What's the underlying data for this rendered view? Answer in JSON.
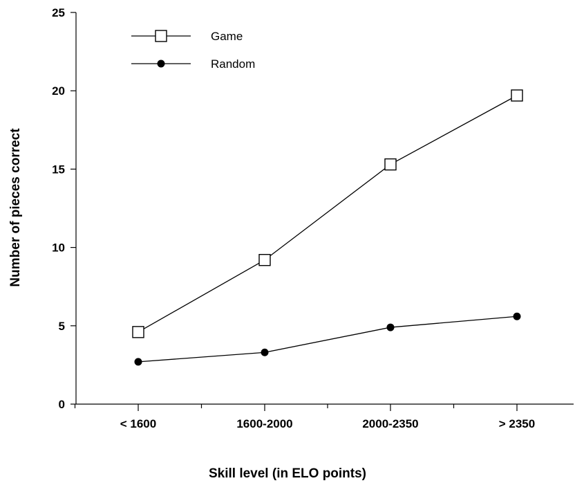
{
  "chart_data": {
    "type": "line",
    "categories": [
      "< 1600",
      "1600-2000",
      "2000-2350",
      "> 2350"
    ],
    "series": [
      {
        "name": "Game",
        "values": [
          4.6,
          9.2,
          15.3,
          19.7
        ],
        "marker": "open-square"
      },
      {
        "name": "Random",
        "values": [
          2.7,
          3.3,
          4.9,
          5.6
        ],
        "marker": "filled-circle"
      }
    ],
    "xlabel": "Skill level (in ELO points)",
    "ylabel": "Number of pieces correct",
    "ylim": [
      0,
      25
    ],
    "yticks": [
      "0",
      "5",
      "10",
      "15",
      "20",
      "25"
    ],
    "grid": false,
    "legend": "top-left",
    "colors": {
      "line": "#000000",
      "background": "#ffffff"
    }
  }
}
